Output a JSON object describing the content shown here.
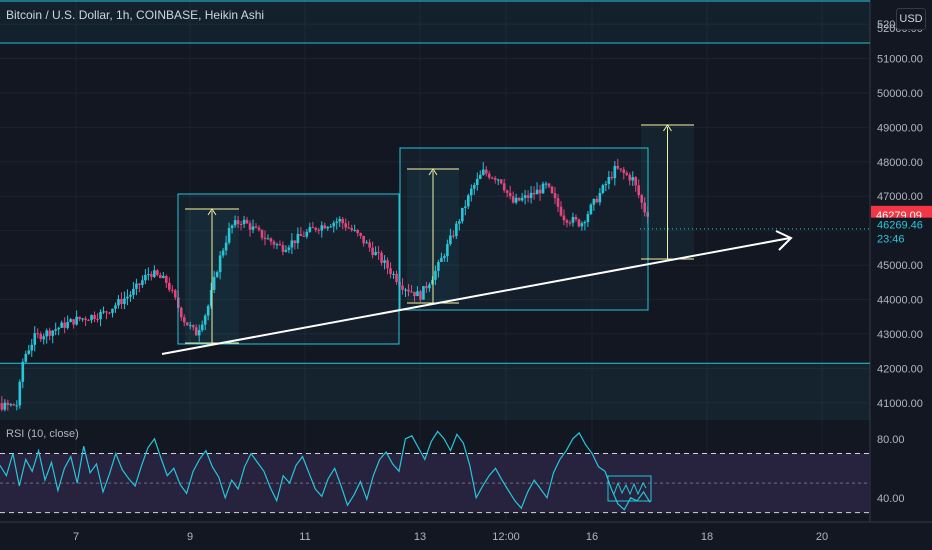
{
  "title": "Bitcoin / U.S. Dollar, 1h, COINBASE, Heikin Ashi",
  "currency": "USD",
  "price_labels": {
    "top": "52000.00",
    "mark_a": "46279.09",
    "mark_b": "46269.46",
    "countdown": "23:46"
  },
  "rsi_title": "RSI (10, close)",
  "colors": {
    "background": "#131722",
    "bull": "#26c6da",
    "bear": "#ec407a",
    "zone": "#26c6da",
    "trendline": "#ffffff",
    "measure": "#fff59d",
    "rsi_line": "#26c6da",
    "rsi_band": "#2a2440",
    "badge_red": "#f23645",
    "badge_cyan": "#26a69a"
  },
  "chart_data": [
    {
      "type": "candlestick",
      "subtype": "Heikin Ashi",
      "title": "Bitcoin / U.S. Dollar, 1h, COINBASE, Heikin Ashi",
      "ylim": [
        40500,
        52700
      ],
      "y_ticks": [
        41000,
        42000,
        43000,
        44000,
        45000,
        46000,
        47000,
        48000,
        49000,
        50000,
        51000,
        52000
      ],
      "y_tick_labels": [
        "41000.00",
        "42000.00",
        "43000.00",
        "44000.00",
        "45000.00",
        "46000.00",
        "47000.00",
        "48000.00",
        "49000.00",
        "50000.00",
        "51000.00",
        "52000.00"
      ],
      "x_tick_labels": [
        "7",
        "9",
        "11",
        "13",
        "12:00",
        "16",
        "18",
        "20"
      ],
      "close_path": [
        [
          5.0,
          41000
        ],
        [
          5.8,
          40900
        ],
        [
          6.0,
          40950
        ],
        [
          6.1,
          42300
        ],
        [
          6.3,
          42900
        ],
        [
          6.6,
          43100
        ],
        [
          7.0,
          43400
        ],
        [
          7.5,
          43600
        ],
        [
          8.0,
          44200
        ],
        [
          8.3,
          44800
        ],
        [
          8.6,
          44500
        ],
        [
          8.9,
          43400
        ],
        [
          9.1,
          43000
        ],
        [
          9.3,
          43700
        ],
        [
          9.5,
          45100
        ],
        [
          9.7,
          46100
        ],
        [
          9.9,
          46300
        ],
        [
          10.3,
          45800
        ],
        [
          10.6,
          45500
        ],
        [
          10.9,
          45800
        ],
        [
          11.2,
          46100
        ],
        [
          11.6,
          46300
        ],
        [
          11.9,
          45900
        ],
        [
          12.3,
          45200
        ],
        [
          12.7,
          44400
        ],
        [
          13.0,
          44100
        ],
        [
          13.3,
          44900
        ],
        [
          13.6,
          46000
        ],
        [
          13.9,
          47200
        ],
        [
          14.1,
          47700
        ],
        [
          14.4,
          47500
        ],
        [
          14.6,
          46800
        ],
        [
          14.9,
          47000
        ],
        [
          15.2,
          47300
        ],
        [
          15.5,
          46400
        ],
        [
          15.8,
          46200
        ],
        [
          16.1,
          47000
        ],
        [
          16.4,
          47800
        ],
        [
          16.7,
          47500
        ],
        [
          16.9,
          46600
        ],
        [
          17.1,
          46300
        ]
      ],
      "last_price": 46279.09
    },
    {
      "type": "line",
      "title": "RSI (10, close)",
      "ylim": [
        25,
        90
      ],
      "y_ticks": [
        40,
        80
      ],
      "y_tick_labels": [
        "40.00",
        "80.00"
      ],
      "levels": [
        30,
        50,
        70
      ],
      "values": [
        62,
        55,
        70,
        48,
        66,
        58,
        72,
        52,
        64,
        45,
        60,
        68,
        50,
        75,
        57,
        63,
        44,
        56,
        70,
        59,
        53,
        48,
        62,
        74,
        80,
        67,
        55,
        60,
        49,
        43,
        58,
        66,
        72,
        61,
        54,
        40,
        52,
        46,
        61,
        70,
        64,
        58,
        47,
        38,
        55,
        50,
        62,
        68,
        57,
        46,
        41,
        53,
        60,
        48,
        35,
        42,
        51,
        39,
        55,
        66,
        71,
        63,
        58,
        80,
        82,
        74,
        66,
        78,
        85,
        80,
        72,
        83,
        77,
        62,
        40,
        48,
        55,
        60,
        52,
        45,
        38,
        33,
        44,
        52,
        46,
        40,
        57,
        66,
        72,
        80,
        84,
        76,
        70,
        61,
        58,
        46,
        36,
        32,
        40,
        38,
        44,
        37
      ],
      "annotation": "box around the last oversold dip"
    }
  ]
}
